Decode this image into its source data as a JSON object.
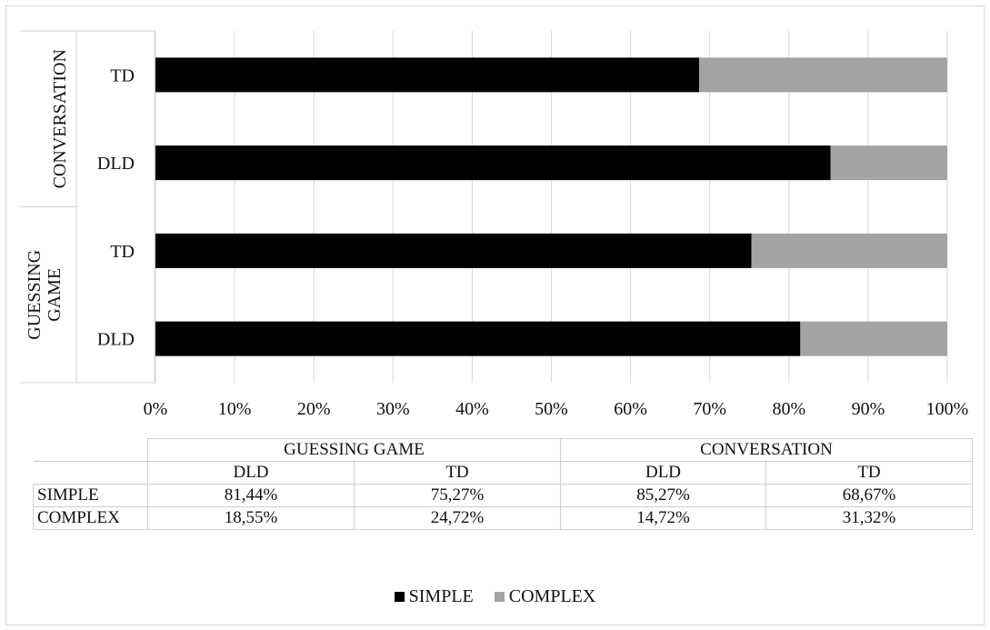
{
  "chart_data": {
    "type": "bar",
    "orientation": "horizontal",
    "stacked": true,
    "normalized": "100%",
    "groups": [
      {
        "label": "GUESSING GAME",
        "categories": [
          "DLD",
          "TD"
        ]
      },
      {
        "label": "CONVERSATION",
        "categories": [
          "DLD",
          "TD"
        ]
      }
    ],
    "categories": [
      "GUESSING GAME DLD",
      "GUESSING GAME TD",
      "CONVERSATION DLD",
      "CONVERSATION TD"
    ],
    "series": [
      {
        "name": "SIMPLE",
        "color": "#000000",
        "values": [
          81.44,
          75.27,
          85.27,
          68.67
        ]
      },
      {
        "name": "COMPLEX",
        "color": "#a3a3a3",
        "values": [
          18.55,
          24.72,
          14.72,
          31.32
        ]
      }
    ],
    "x_ticks": [
      "0%",
      "10%",
      "20%",
      "30%",
      "40%",
      "50%",
      "60%",
      "70%",
      "80%",
      "90%",
      "100%"
    ],
    "xlim": [
      0,
      100
    ],
    "grid": "vertical",
    "legend_position": "bottom"
  },
  "table": {
    "groups": [
      "GUESSING GAME",
      "CONVERSATION"
    ],
    "subheaders": [
      "DLD",
      "TD",
      "DLD",
      "TD"
    ],
    "rows": [
      {
        "label": "SIMPLE",
        "values": [
          "81,44%",
          "75,27%",
          "85,27%",
          "68,67%"
        ]
      },
      {
        "label": "COMPLEX",
        "values": [
          "18,55%",
          "24,72%",
          "14,72%",
          "31,32%"
        ]
      }
    ]
  },
  "legend": [
    {
      "label": "SIMPLE",
      "color": "#000000"
    },
    {
      "label": "COMPLEX",
      "color": "#a3a3a3"
    }
  ]
}
